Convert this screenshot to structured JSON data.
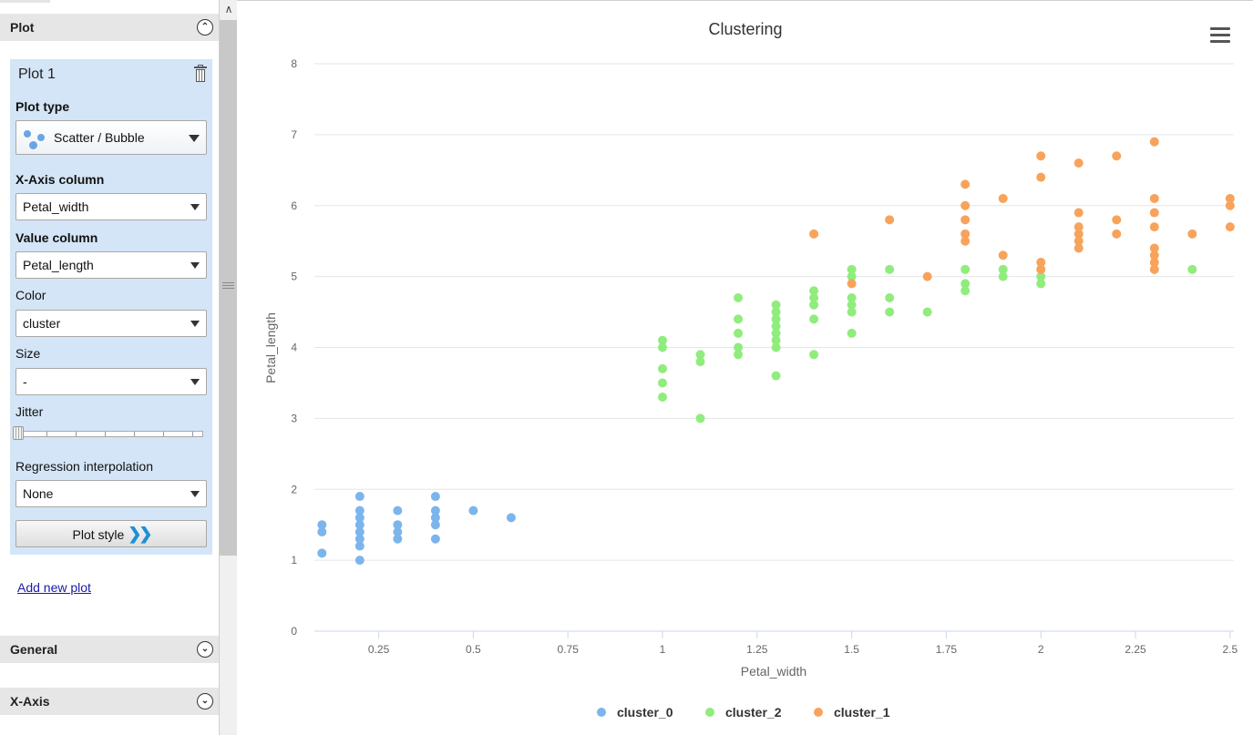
{
  "sidebar": {
    "plot_section": {
      "title": "Plot",
      "toggle_icon": "collapse-up-icon"
    },
    "plot_card": {
      "title": "Plot 1",
      "plot_type_label": "Plot type",
      "plot_type_value": "Scatter / Bubble",
      "x_axis_label": "X-Axis column",
      "x_axis_value": "Petal_width",
      "value_label": "Value column",
      "value_value": "Petal_length",
      "color_label": "Color",
      "color_value": "cluster",
      "size_label": "Size",
      "size_value": "-",
      "jitter_label": "Jitter",
      "jitter_value": 0,
      "regression_label": "Regression interpolation",
      "regression_value": "None",
      "plot_style_label": "Plot style"
    },
    "add_new_plot": "Add new plot",
    "general_section": {
      "title": "General"
    },
    "xaxis_section": {
      "title": "X-Axis"
    }
  },
  "chart_data": {
    "type": "scatter",
    "title": "Clustering",
    "xlabel": "Petal_width",
    "ylabel": "Petal_length",
    "xlim": [
      0.08,
      2.51
    ],
    "ylim": [
      0,
      8
    ],
    "xticks": [
      0.25,
      0.5,
      0.75,
      1,
      1.25,
      1.5,
      1.75,
      2,
      2.25,
      2.5
    ],
    "xtick_labels": [
      "0.25",
      "0.5",
      "0.75",
      "1",
      "1.25",
      "1.5",
      "1.75",
      "2",
      "2.25",
      "2.5"
    ],
    "yticks": [
      0,
      1,
      2,
      3,
      4,
      5,
      6,
      7,
      8
    ],
    "ytick_labels": [
      "0",
      "1",
      "2",
      "3",
      "4",
      "5",
      "6",
      "7",
      "8"
    ],
    "grid": true,
    "legend_position": "bottom-center",
    "series": [
      {
        "name": "cluster_0",
        "color": "#7cb5ec",
        "points": [
          [
            0.1,
            1.5
          ],
          [
            0.1,
            1.4
          ],
          [
            0.1,
            1.1
          ],
          [
            0.2,
            1.9
          ],
          [
            0.2,
            1.7
          ],
          [
            0.2,
            1.6
          ],
          [
            0.2,
            1.5
          ],
          [
            0.2,
            1.4
          ],
          [
            0.2,
            1.3
          ],
          [
            0.2,
            1.2
          ],
          [
            0.2,
            1.0
          ],
          [
            0.3,
            1.7
          ],
          [
            0.3,
            1.5
          ],
          [
            0.3,
            1.4
          ],
          [
            0.3,
            1.3
          ],
          [
            0.4,
            1.9
          ],
          [
            0.4,
            1.7
          ],
          [
            0.4,
            1.6
          ],
          [
            0.4,
            1.5
          ],
          [
            0.4,
            1.3
          ],
          [
            0.5,
            1.7
          ],
          [
            0.6,
            1.6
          ]
        ]
      },
      {
        "name": "cluster_2",
        "color": "#90ed7d",
        "points": [
          [
            1.0,
            4.1
          ],
          [
            1.0,
            4.0
          ],
          [
            1.0,
            3.7
          ],
          [
            1.0,
            3.5
          ],
          [
            1.0,
            3.3
          ],
          [
            1.1,
            3.9
          ],
          [
            1.1,
            3.8
          ],
          [
            1.1,
            3.0
          ],
          [
            1.2,
            4.7
          ],
          [
            1.2,
            4.4
          ],
          [
            1.2,
            4.2
          ],
          [
            1.2,
            4.0
          ],
          [
            1.2,
            3.9
          ],
          [
            1.3,
            4.6
          ],
          [
            1.3,
            4.5
          ],
          [
            1.3,
            4.4
          ],
          [
            1.3,
            4.3
          ],
          [
            1.3,
            4.2
          ],
          [
            1.3,
            4.1
          ],
          [
            1.3,
            4.0
          ],
          [
            1.3,
            3.6
          ],
          [
            1.4,
            4.8
          ],
          [
            1.4,
            4.7
          ],
          [
            1.4,
            4.6
          ],
          [
            1.4,
            4.4
          ],
          [
            1.4,
            3.9
          ],
          [
            1.5,
            5.1
          ],
          [
            1.5,
            5.0
          ],
          [
            1.5,
            4.7
          ],
          [
            1.5,
            4.6
          ],
          [
            1.5,
            4.5
          ],
          [
            1.5,
            4.2
          ],
          [
            1.6,
            5.1
          ],
          [
            1.6,
            4.7
          ],
          [
            1.6,
            4.5
          ],
          [
            1.7,
            4.5
          ],
          [
            1.8,
            5.1
          ],
          [
            1.8,
            4.9
          ],
          [
            1.8,
            4.8
          ],
          [
            1.9,
            5.1
          ],
          [
            1.9,
            5.0
          ],
          [
            2.0,
            5.0
          ],
          [
            2.0,
            4.9
          ],
          [
            2.4,
            5.1
          ]
        ]
      },
      {
        "name": "cluster_1",
        "color": "#f7a35c",
        "points": [
          [
            1.4,
            5.6
          ],
          [
            1.5,
            4.9
          ],
          [
            1.6,
            5.8
          ],
          [
            1.7,
            5.0
          ],
          [
            1.8,
            6.3
          ],
          [
            1.8,
            6.0
          ],
          [
            1.8,
            5.8
          ],
          [
            1.8,
            5.6
          ],
          [
            1.8,
            5.5
          ],
          [
            1.9,
            6.1
          ],
          [
            1.9,
            5.3
          ],
          [
            2.0,
            6.7
          ],
          [
            2.0,
            6.4
          ],
          [
            2.0,
            5.2
          ],
          [
            2.0,
            5.1
          ],
          [
            2.1,
            6.6
          ],
          [
            2.1,
            5.9
          ],
          [
            2.1,
            5.7
          ],
          [
            2.1,
            5.6
          ],
          [
            2.1,
            5.5
          ],
          [
            2.1,
            5.4
          ],
          [
            2.2,
            6.7
          ],
          [
            2.2,
            5.8
          ],
          [
            2.2,
            5.6
          ],
          [
            2.3,
            6.9
          ],
          [
            2.3,
            6.1
          ],
          [
            2.3,
            5.9
          ],
          [
            2.3,
            5.7
          ],
          [
            2.3,
            5.4
          ],
          [
            2.3,
            5.3
          ],
          [
            2.3,
            5.2
          ],
          [
            2.3,
            5.1
          ],
          [
            2.4,
            5.6
          ],
          [
            2.5,
            6.1
          ],
          [
            2.5,
            6.0
          ],
          [
            2.5,
            5.7
          ]
        ]
      }
    ]
  }
}
